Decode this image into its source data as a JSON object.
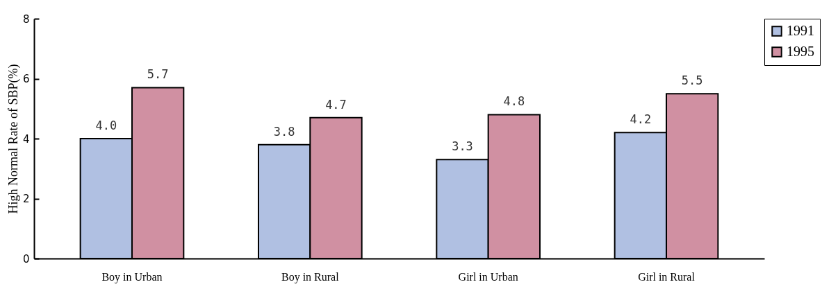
{
  "chart_data": {
    "type": "bar",
    "ylabel": "High  Normal Rate of  SBP(%)",
    "categories": [
      "Boy in Urban",
      "Boy in Rural",
      "Girl in Urban",
      "Girl in Rural"
    ],
    "series": [
      {
        "name": "1991",
        "color": "#b0c0e2",
        "values": [
          4.0,
          3.8,
          3.3,
          4.2
        ],
        "value_labels": [
          "4.0",
          "3.8",
          "3.3",
          "4.2"
        ]
      },
      {
        "name": "1995",
        "color": "#d090a2",
        "values": [
          5.7,
          4.7,
          4.8,
          5.5
        ],
        "value_labels": [
          "5.7",
          "4.7",
          "4.8",
          "5.5"
        ]
      }
    ],
    "ylim": [
      0,
      8
    ],
    "yticks": [
      0,
      2,
      4,
      6,
      8
    ],
    "grid": false,
    "legend": "top right"
  }
}
